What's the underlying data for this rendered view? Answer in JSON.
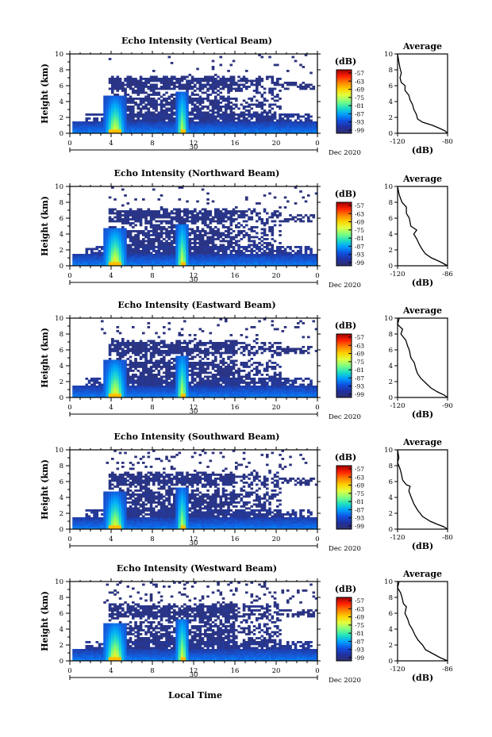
{
  "figure": {
    "x_axis_label": "Local Time",
    "date_day": "30",
    "date_month": "Dec 2020",
    "x_ticks": [
      "0",
      "4",
      "8",
      "12",
      "16",
      "20",
      "0"
    ],
    "y_label": "Height (km)",
    "y_ticks": [
      "0",
      "2",
      "4",
      "6",
      "8",
      "10"
    ],
    "colorbar_unit": "(dB)",
    "colorbar_ticks": [
      "-57",
      "-63",
      "-69",
      "-75",
      "-81",
      "-87",
      "-93",
      "-99"
    ],
    "colorbar_colors": [
      "#9e0000",
      "#ff2000",
      "#ff8000",
      "#ffd000",
      "#e0ff40",
      "#80ff80",
      "#20e0c0",
      "#00a0ff",
      "#1050e0",
      "#2030a0",
      "#30306e"
    ],
    "profile_title": "Average",
    "profile_xlabel": "(dB)"
  },
  "chart_data": [
    {
      "type": "heatmap",
      "title": "Echo Intensity (Vertical Beam)",
      "xlabel": "Local Time",
      "ylabel": "Height (km)",
      "xlim": [
        0,
        24
      ],
      "ylim": [
        0,
        10
      ],
      "zlim": [
        -99,
        -57
      ],
      "description": "Time-height echo intensity; boundary layer 0-1.5 km all day, cloud layer 6-7 km from 4 to 20 h, convective cores near 4.5 h and 11 h",
      "profile": {
        "title": "Average",
        "xlabel": "(dB)",
        "xticks": [
          "-120",
          "-80"
        ],
        "xlim": [
          -120,
          -80
        ],
        "points": [
          [
            -120,
            10
          ],
          [
            -119,
            9
          ],
          [
            -118,
            8.2
          ],
          [
            -117,
            7.6
          ],
          [
            -118,
            7
          ],
          [
            -117,
            6.4
          ],
          [
            -114,
            6
          ],
          [
            -114,
            5.4
          ],
          [
            -111,
            4.8
          ],
          [
            -110,
            4.2
          ],
          [
            -108,
            3.6
          ],
          [
            -107,
            3
          ],
          [
            -105,
            2.4
          ],
          [
            -104,
            1.8
          ],
          [
            -100,
            1.4
          ],
          [
            -92,
            1
          ],
          [
            -86,
            0.6
          ],
          [
            -82,
            0.3
          ],
          [
            -80,
            0
          ]
        ]
      }
    },
    {
      "type": "heatmap",
      "title": "Echo Intensity (Northward Beam)",
      "xlabel": "Local Time",
      "ylabel": "Height (km)",
      "xlim": [
        0,
        24
      ],
      "ylim": [
        0,
        10
      ],
      "zlim": [
        -99,
        -57
      ],
      "profile": {
        "title": "Average",
        "xlabel": "(dB)",
        "xticks": [
          "-120",
          "-86"
        ],
        "xlim": [
          -120,
          -86
        ],
        "points": [
          [
            -120,
            10
          ],
          [
            -119,
            9
          ],
          [
            -118,
            8.5
          ],
          [
            -117,
            8
          ],
          [
            -114,
            7.4
          ],
          [
            -114,
            6.6
          ],
          [
            -112,
            6
          ],
          [
            -111,
            5
          ],
          [
            -107,
            4.5
          ],
          [
            -109,
            4
          ],
          [
            -107,
            3.4
          ],
          [
            -105,
            2.6
          ],
          [
            -103,
            2
          ],
          [
            -101,
            1.5
          ],
          [
            -97,
            1
          ],
          [
            -91,
            0.5
          ],
          [
            -86,
            0
          ]
        ]
      }
    },
    {
      "type": "heatmap",
      "title": "Echo Intensity (Eastward Beam)",
      "xlabel": "Local Time",
      "ylabel": "Height (km)",
      "xlim": [
        0,
        24
      ],
      "ylim": [
        0,
        10
      ],
      "zlim": [
        -99,
        -57
      ],
      "profile": {
        "title": "Average",
        "xlabel": "(dB)",
        "xticks": [
          "-120",
          "-90"
        ],
        "xlim": [
          -120,
          -90
        ],
        "points": [
          [
            -119,
            10
          ],
          [
            -120,
            9.2
          ],
          [
            -117,
            8.6
          ],
          [
            -118,
            8
          ],
          [
            -115,
            7.2
          ],
          [
            -114,
            6.5
          ],
          [
            -113,
            6
          ],
          [
            -112,
            5
          ],
          [
            -110,
            4.4
          ],
          [
            -109,
            3.6
          ],
          [
            -108,
            3
          ],
          [
            -106,
            2.4
          ],
          [
            -103,
            1.8
          ],
          [
            -100,
            1.2
          ],
          [
            -96,
            0.7
          ],
          [
            -92,
            0.3
          ],
          [
            -90,
            0
          ]
        ]
      }
    },
    {
      "type": "heatmap",
      "title": "Echo Intensity (Southward Beam)",
      "xlabel": "Local Time",
      "ylabel": "Height (km)",
      "xlim": [
        0,
        24
      ],
      "ylim": [
        0,
        10
      ],
      "zlim": [
        -99,
        -57
      ],
      "profile": {
        "title": "Average",
        "xlabel": "(dB)",
        "xticks": [
          "-120",
          "-80"
        ],
        "xlim": [
          -120,
          -80
        ],
        "points": [
          [
            -120,
            10
          ],
          [
            -119,
            9
          ],
          [
            -120,
            8.4
          ],
          [
            -118,
            7.6
          ],
          [
            -117,
            7
          ],
          [
            -116,
            6.2
          ],
          [
            -113,
            5.6
          ],
          [
            -110,
            5.4
          ],
          [
            -111,
            4.8
          ],
          [
            -109,
            4
          ],
          [
            -107,
            3.2
          ],
          [
            -104,
            2.4
          ],
          [
            -100,
            1.6
          ],
          [
            -94,
            1
          ],
          [
            -88,
            0.6
          ],
          [
            -83,
            0.3
          ],
          [
            -80,
            0
          ]
        ]
      }
    },
    {
      "type": "heatmap",
      "title": "Echo Intensity (Westward Beam)",
      "xlabel": "Local Time",
      "ylabel": "Height (km)",
      "xlim": [
        0,
        24
      ],
      "ylim": [
        0,
        10
      ],
      "zlim": [
        -99,
        -57
      ],
      "profile": {
        "title": "Average",
        "xlabel": "(dB)",
        "xticks": [
          "-120",
          "-86"
        ],
        "xlim": [
          -120,
          -86
        ],
        "points": [
          [
            -119,
            10
          ],
          [
            -120,
            9.2
          ],
          [
            -118,
            8.6
          ],
          [
            -117,
            8
          ],
          [
            -116,
            7.2
          ],
          [
            -114,
            6.8
          ],
          [
            -115,
            6
          ],
          [
            -113,
            5.2
          ],
          [
            -112,
            4.6
          ],
          [
            -110,
            4
          ],
          [
            -108,
            3.2
          ],
          [
            -106,
            2.6
          ],
          [
            -103,
            2
          ],
          [
            -101,
            1.4
          ],
          [
            -96,
            0.9
          ],
          [
            -91,
            0.4
          ],
          [
            -86,
            0
          ]
        ]
      }
    }
  ]
}
